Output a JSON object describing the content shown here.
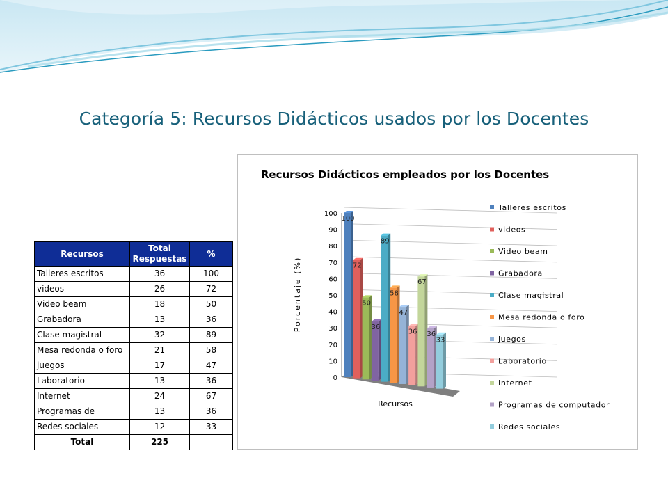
{
  "slide": {
    "title": "Categoría 5: Recursos Didácticos usados por los Docentes"
  },
  "table": {
    "headers": [
      "Recursos",
      "Total Respuestas",
      "%"
    ],
    "rows": [
      {
        "recurso": "Talleres escritos",
        "total": "36",
        "pct": "100"
      },
      {
        "recurso": "videos",
        "total": "26",
        "pct": "72"
      },
      {
        "recurso": "Video beam",
        "total": "18",
        "pct": "50"
      },
      {
        "recurso": "Grabadora",
        "total": "13",
        "pct": "36"
      },
      {
        "recurso": "Clase magistral",
        "total": "32",
        "pct": "89"
      },
      {
        "recurso": "Mesa redonda o foro",
        "total": "21",
        "pct": "58"
      },
      {
        "recurso": "juegos",
        "total": "17",
        "pct": "47"
      },
      {
        "recurso": "Laboratorio",
        "total": "13",
        "pct": "36"
      },
      {
        "recurso": "Internet",
        "total": "24",
        "pct": "67"
      },
      {
        "recurso": "Programas de",
        "total": "13",
        "pct": "36"
      },
      {
        "recurso": "Redes sociales",
        "total": "12",
        "pct": "33"
      }
    ],
    "footer": {
      "label": "Total",
      "total": "225",
      "pct": ""
    }
  },
  "chart_data": {
    "type": "bar",
    "title": "Recursos Didácticos empleados por los Docentes",
    "xlabel": "Recursos",
    "ylabel": "Porcentaje (%)",
    "ylim": [
      0,
      100
    ],
    "yticks": [
      0,
      10,
      20,
      30,
      40,
      50,
      60,
      70,
      80,
      90,
      100
    ],
    "grid": true,
    "legend_position": "right",
    "series": [
      {
        "name": "Talleres escritos",
        "value": 100,
        "color": "#4f81bd"
      },
      {
        "name": "videos",
        "value": 72,
        "color": "#e0605c"
      },
      {
        "name": "Video beam",
        "value": 50,
        "color": "#9bbb59"
      },
      {
        "name": "Grabadora",
        "value": 36,
        "color": "#8064a2"
      },
      {
        "name": "Clase magistral",
        "value": 89,
        "color": "#4bacc6"
      },
      {
        "name": "Mesa redonda o foro",
        "value": 58,
        "color": "#f79646"
      },
      {
        "name": "juegos",
        "value": 47,
        "color": "#95b3d7"
      },
      {
        "name": "Laboratorio",
        "value": 36,
        "color": "#f2a09d"
      },
      {
        "name": "Internet",
        "value": 67,
        "color": "#c3d69b"
      },
      {
        "name": "Programas de computador",
        "value": 36,
        "color": "#b3a2c7"
      },
      {
        "name": "Redes sociales",
        "value": 33,
        "color": "#93cddd"
      }
    ]
  }
}
